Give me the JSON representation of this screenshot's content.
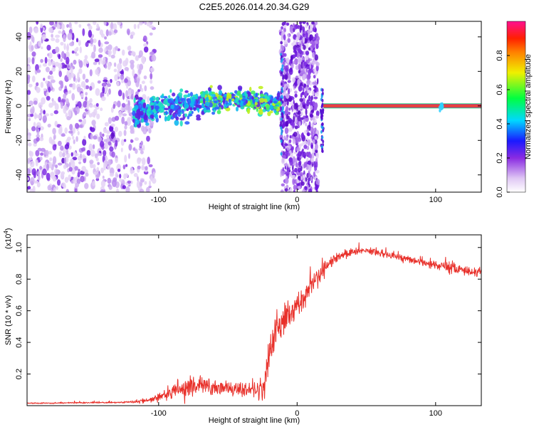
{
  "title": "C2E5.2026.014.20.34.G29",
  "colors": {
    "snr_line": "#e8302a",
    "track": "#d6306a",
    "track_core": "#f04a2a",
    "scatter_light": "#c8a8f0",
    "scatter_dark": "#6a1ae0"
  },
  "chart_data": [
    {
      "type": "heatmap",
      "name": "spectrogram",
      "xlabel": "Height of straight line (km)",
      "ylabel": "Frequency (Hz)",
      "xlim": [
        -195,
        133
      ],
      "ylim": [
        -50,
        49
      ],
      "x_ticks": [
        -100,
        0,
        100
      ],
      "x_tick_labels": [
        "-100",
        "0",
        "100"
      ],
      "y_ticks": [
        -40,
        -20,
        0,
        20,
        40
      ],
      "y_tick_labels": [
        "-40",
        "-20",
        "0",
        "20",
        "40"
      ],
      "colorbar": {
        "label": "Normalized spectral amplitude",
        "range": [
          0,
          1
        ],
        "ticks": [
          0.0,
          0.2,
          0.4,
          0.6,
          0.8
        ],
        "tick_labels": [
          "0.0",
          "0.2",
          "0.4",
          "0.6",
          "0.8"
        ]
      },
      "features": {
        "noise_region_km": [
          -195,
          -103
        ],
        "wide_band_km": [
          -12,
          15
        ],
        "tone_start_km": 19,
        "tone_frequency_hz": 0
      }
    },
    {
      "type": "line",
      "name": "snr",
      "xlabel": "Height of straight line (km)",
      "ylabel": "SNR (10 * v/v)",
      "y_multiplier": "(x10",
      "y_multiplier_exp": "4",
      "xlim": [
        -195,
        133
      ],
      "ylim": [
        0,
        1.08
      ],
      "x_ticks": [
        -100,
        0,
        100
      ],
      "x_tick_labels": [
        "-100",
        "0",
        "100"
      ],
      "y_ticks": [
        0.2,
        0.4,
        0.6,
        0.8,
        1.0
      ],
      "y_tick_labels": [
        "0.2",
        "0.4",
        "0.6",
        "0.8",
        "1.0"
      ],
      "envelope": {
        "x": [
          -195,
          -160,
          -130,
          -115,
          -105,
          -95,
          -85,
          -75,
          -65,
          -50,
          -40,
          -30,
          -24,
          -21,
          -18,
          -15,
          -10,
          -5,
          0,
          5,
          10,
          15,
          20,
          25,
          30,
          35,
          40,
          45,
          50,
          55,
          60,
          65,
          70,
          75,
          80,
          85,
          90,
          95,
          100,
          105,
          110,
          115,
          120,
          125,
          133
        ],
        "mean": [
          0.015,
          0.018,
          0.02,
          0.025,
          0.04,
          0.07,
          0.1,
          0.13,
          0.12,
          0.11,
          0.1,
          0.095,
          0.11,
          0.3,
          0.42,
          0.48,
          0.53,
          0.58,
          0.64,
          0.7,
          0.76,
          0.82,
          0.87,
          0.91,
          0.94,
          0.96,
          0.97,
          0.975,
          0.98,
          0.975,
          0.965,
          0.955,
          0.945,
          0.935,
          0.925,
          0.915,
          0.905,
          0.895,
          0.885,
          0.875,
          0.87,
          0.865,
          0.855,
          0.85,
          0.845
        ],
        "noise": [
          0.004,
          0.005,
          0.006,
          0.01,
          0.02,
          0.035,
          0.06,
          0.08,
          0.06,
          0.05,
          0.05,
          0.05,
          0.08,
          0.14,
          0.13,
          0.12,
          0.11,
          0.1,
          0.09,
          0.09,
          0.08,
          0.07,
          0.06,
          0.05,
          0.04,
          0.035,
          0.03,
          0.025,
          0.025,
          0.025,
          0.025,
          0.025,
          0.025,
          0.025,
          0.025,
          0.025,
          0.025,
          0.03,
          0.03,
          0.04,
          0.05,
          0.04,
          0.03,
          0.03,
          0.03
        ]
      }
    }
  ]
}
